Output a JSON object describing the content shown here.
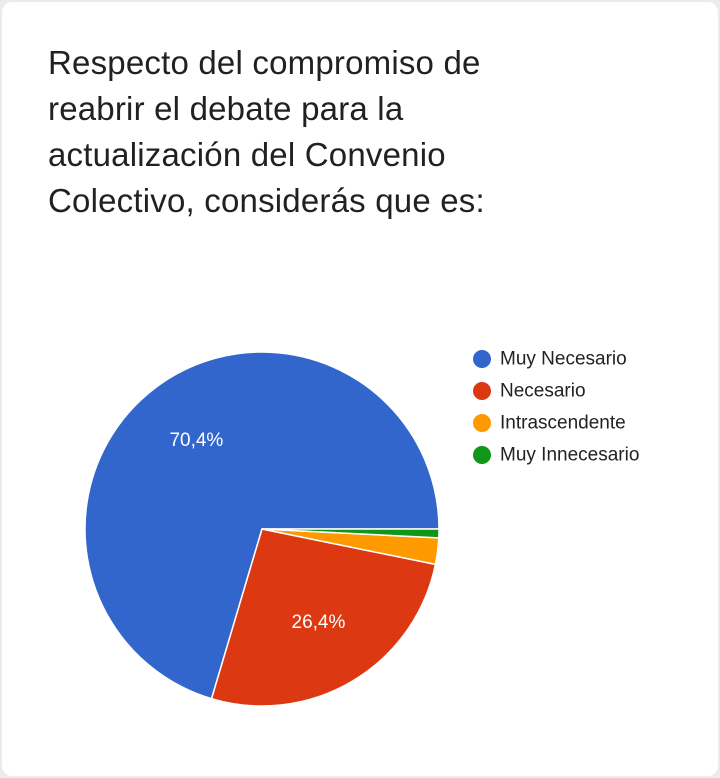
{
  "question": {
    "title": "Respecto del compromiso de reabrir el debate para la actualización del Convenio Colectivo, considerás que es:"
  },
  "chart_data": {
    "type": "pie",
    "title": "Respecto del compromiso de reabrir el debate para la actualización del Convenio Colectivo, considerás que es:",
    "start_angle_deg": 0,
    "direction": "counterclockwise",
    "legend_position": "right",
    "slices": [
      {
        "label": "Muy Necesario",
        "value": 70.4,
        "data_label": "70,4%",
        "color": "#3366cc"
      },
      {
        "label": "Necesario",
        "value": 26.4,
        "data_label": "26,4%",
        "color": "#dc3912"
      },
      {
        "label": "Intrascendente",
        "value": 2.4,
        "data_label": "",
        "color": "#ff9900"
      },
      {
        "label": "Muy Innecesario",
        "value": 0.8,
        "data_label": "",
        "color": "#109618"
      }
    ]
  }
}
